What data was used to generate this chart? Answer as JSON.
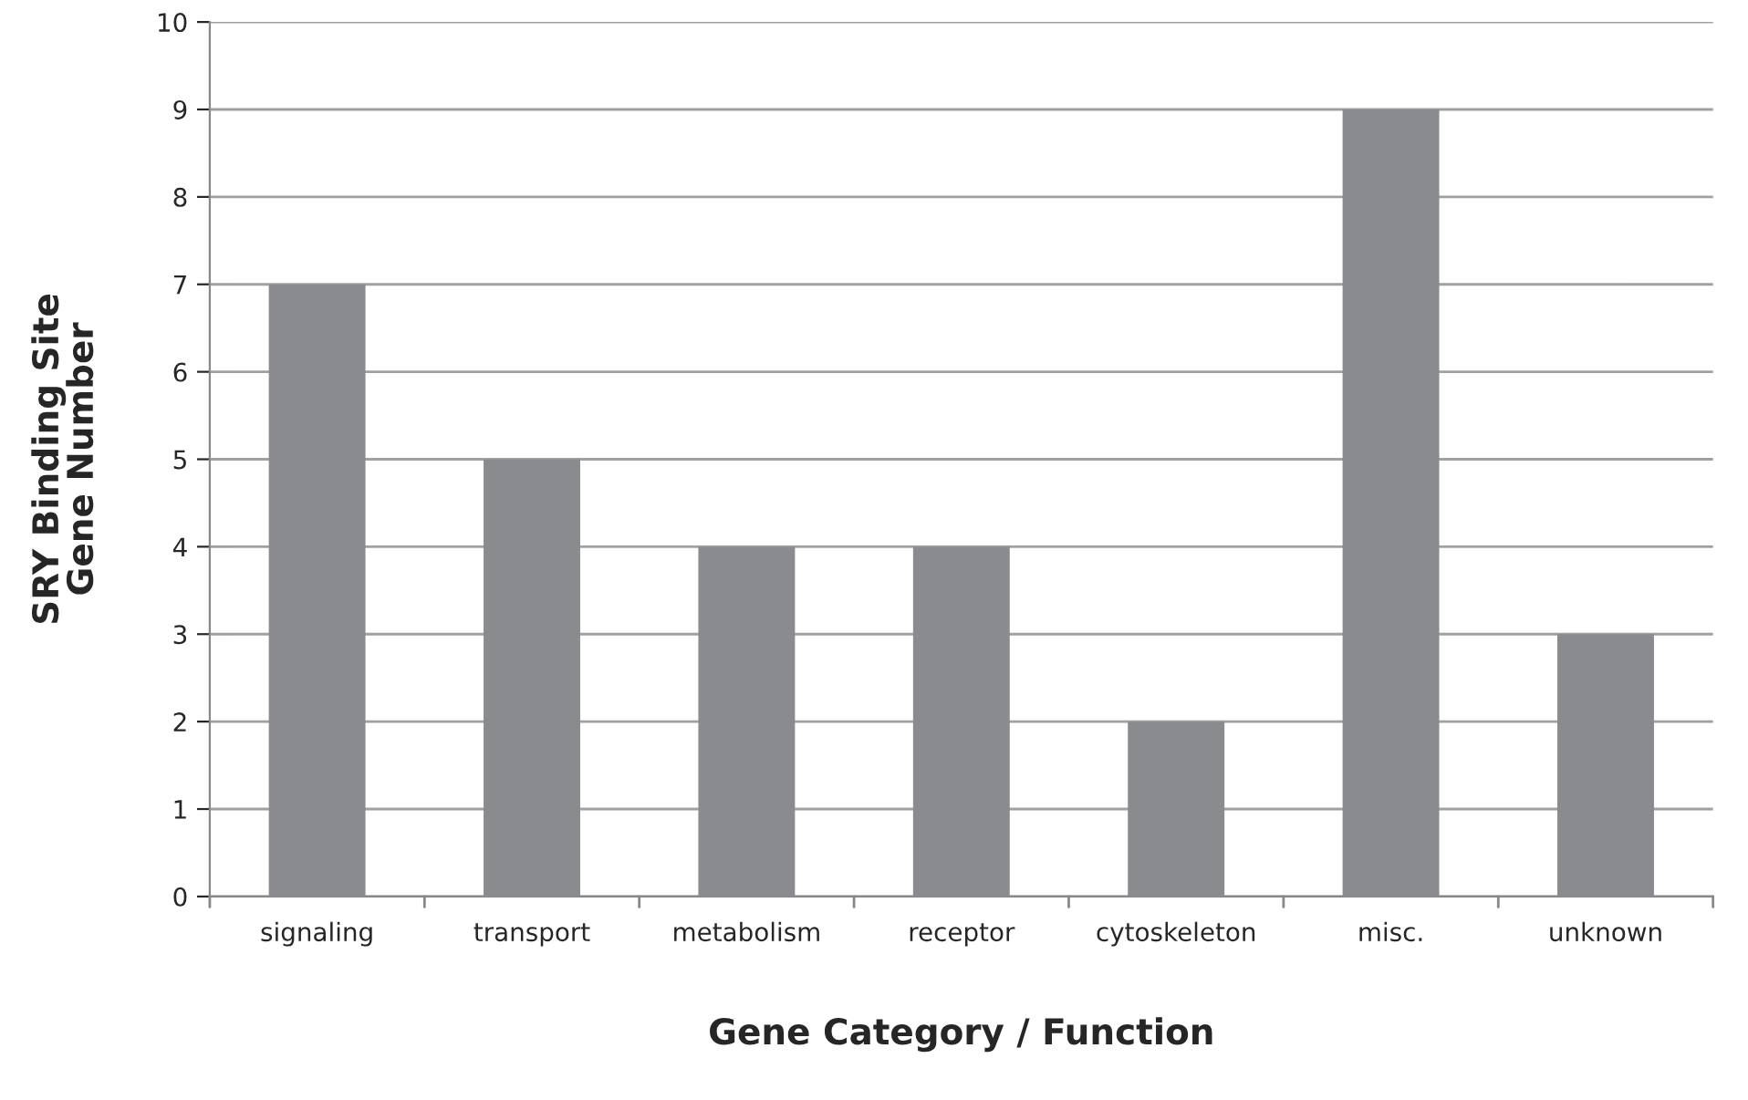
{
  "chart_data": {
    "type": "bar",
    "categories": [
      "signaling",
      "transport",
      "metabolism",
      "receptor",
      "cytoskeleton",
      "misc.",
      "unknown"
    ],
    "values": [
      7,
      5,
      4,
      4,
      2,
      9,
      3
    ],
    "color": "#8a8b8f",
    "xlabel": "Gene Category / Function",
    "ylabel": "SRY Binding Site\nGene Number",
    "ylim": [
      0,
      10
    ],
    "yticks": [
      0,
      1,
      2,
      3,
      4,
      5,
      6,
      7,
      8,
      9,
      10
    ],
    "grid": "y",
    "legend": false
  }
}
